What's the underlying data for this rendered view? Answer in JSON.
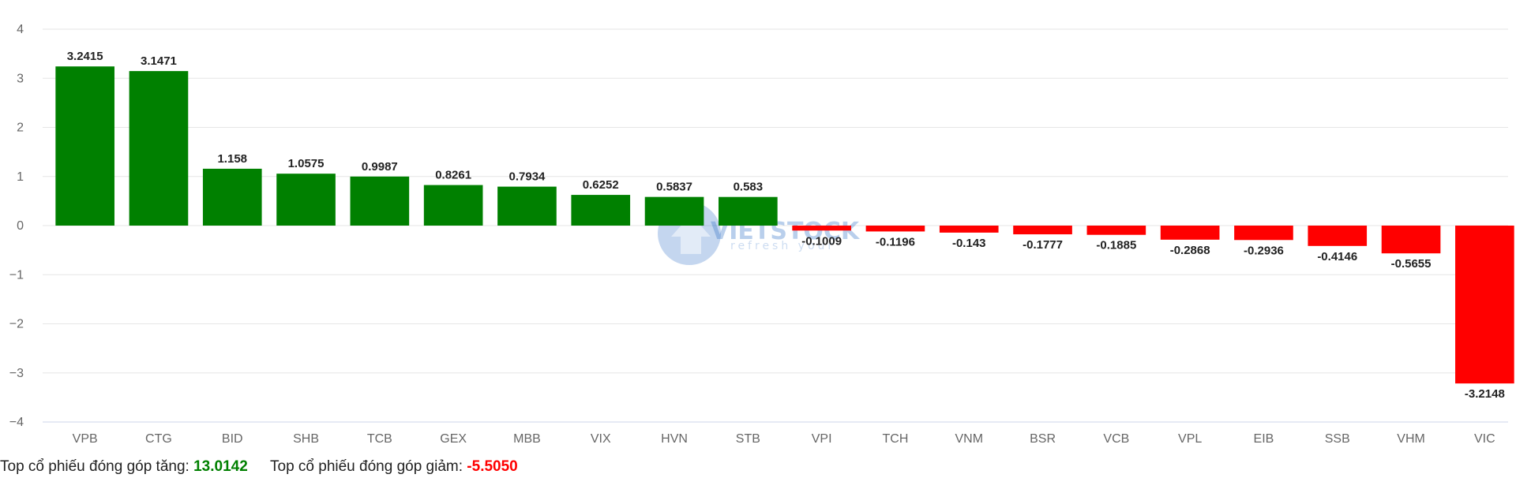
{
  "colors": {
    "positive": "#008000",
    "negative": "#ff0000",
    "grid": "#e6e6e6",
    "axis_text": "#666666",
    "watermark": "#3a78c9"
  },
  "watermark": {
    "brand": "VIETSTOCK",
    "tagline": "refresh your"
  },
  "chart_data": {
    "type": "bar",
    "categories": [
      "VPB",
      "CTG",
      "BID",
      "SHB",
      "TCB",
      "GEX",
      "MBB",
      "VIX",
      "HVN",
      "STB",
      "VPI",
      "TCH",
      "VNM",
      "BSR",
      "VCB",
      "VPL",
      "EIB",
      "SSB",
      "VHM",
      "VIC"
    ],
    "values": [
      3.2415,
      3.1471,
      1.158,
      1.0575,
      0.9987,
      0.8261,
      0.7934,
      0.6252,
      0.5837,
      0.583,
      -0.1009,
      -0.1196,
      -0.143,
      -0.1777,
      -0.1885,
      -0.2868,
      -0.2936,
      -0.4146,
      -0.5655,
      -3.2148
    ],
    "data_labels": [
      "3.2415",
      "3.1471",
      "1.158",
      "1.0575",
      "0.9987",
      "0.8261",
      "0.7934",
      "0.6252",
      "0.5837",
      "0.583",
      "-0.1009",
      "-0.1196",
      "-0.143",
      "-0.1777",
      "-0.1885",
      "-0.2868",
      "-0.2936",
      "-0.4146",
      "-0.5655",
      "-3.2148"
    ],
    "ylim": [
      -4,
      4
    ],
    "yticks": [
      4,
      3,
      2,
      1,
      0,
      -1,
      -2,
      -3,
      -4
    ],
    "ytick_labels": [
      "4",
      "3",
      "2",
      "1",
      "0",
      "−1",
      "−2",
      "−3",
      "−4"
    ],
    "grid": true,
    "legend": "none"
  },
  "footer": {
    "up_label": "Top cổ phiếu đóng góp tăng:",
    "up_value": "13.0142",
    "down_label": "Top cổ phiếu đóng góp giảm:",
    "down_value": "-5.5050"
  }
}
